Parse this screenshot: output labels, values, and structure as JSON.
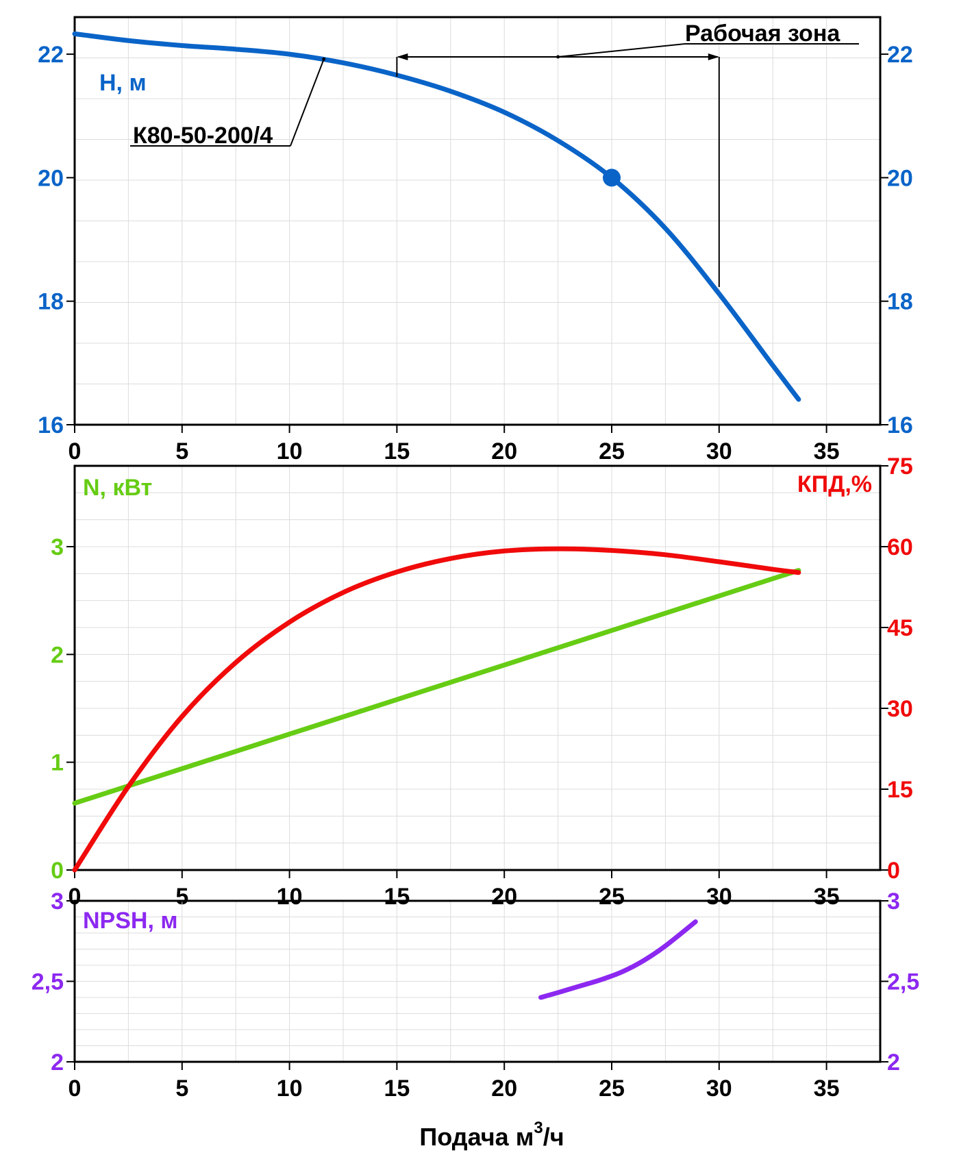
{
  "colors": {
    "head": "#0a64c8",
    "power": "#66cc14",
    "efficiency": "#f00a0a",
    "npsh": "#8c28f0",
    "axis": "#000000",
    "grid": "#dcdcdc"
  },
  "chart_data": [
    {
      "type": "line",
      "xlim": [
        0,
        37.5
      ],
      "x_ticks": [
        "0",
        "5",
        "10",
        "15",
        "20",
        "25",
        "30",
        "35"
      ],
      "ylim": [
        16,
        22.6
      ],
      "y_ticks": [
        "16",
        "18",
        "20",
        "22"
      ],
      "ylabel": "H, м",
      "series": [
        {
          "name": "К80-50-200/4",
          "x": [
            0,
            2.5,
            5,
            7.5,
            10,
            12.5,
            15,
            17.5,
            20,
            22.5,
            25,
            27.5,
            30,
            32.5,
            33.7
          ],
          "y": [
            22.33,
            22.22,
            22.14,
            22.08,
            22.0,
            21.86,
            21.66,
            21.4,
            21.06,
            20.6,
            20.0,
            19.18,
            18.12,
            16.96,
            16.41
          ]
        }
      ],
      "operating_point": {
        "x": 25,
        "y": 20
      },
      "annotations": {
        "curve_label": "К80-50-200/4",
        "work_zone_label": "Рабочая зона",
        "work_zone_range": [
          15,
          30
        ]
      }
    },
    {
      "type": "line",
      "xlim": [
        0,
        37.5
      ],
      "x_ticks": [
        "0",
        "5",
        "10",
        "15",
        "20",
        "25",
        "30",
        "35"
      ],
      "ylim_left": [
        0,
        3.75
      ],
      "y_ticks_left": [
        "0",
        "1",
        "2",
        "3"
      ],
      "ylabel_left": "N, кВт",
      "ylim_right": [
        0,
        75
      ],
      "y_ticks_right": [
        "0",
        "15",
        "30",
        "45",
        "60",
        "75"
      ],
      "ylabel_right": "КПД,%",
      "series": [
        {
          "name": "N, кВт",
          "axis": "left",
          "x": [
            0,
            33.7
          ],
          "y": [
            0.62,
            2.78
          ]
        },
        {
          "name": "КПД,%",
          "axis": "right",
          "x": [
            0,
            2.5,
            5,
            7.5,
            10,
            12.5,
            15,
            17.5,
            20,
            22.5,
            25,
            27.5,
            30,
            32.5,
            33.7
          ],
          "y": [
            0,
            15.5,
            28.5,
            38.5,
            46,
            51.5,
            55.3,
            57.8,
            59.2,
            59.6,
            59.3,
            58.5,
            57.2,
            55.8,
            55.2
          ]
        }
      ]
    },
    {
      "type": "line",
      "xlim": [
        0,
        37.5
      ],
      "x_ticks": [
        "0",
        "5",
        "10",
        "15",
        "20",
        "25",
        "30",
        "35"
      ],
      "ylim": [
        2,
        3
      ],
      "y_ticks": [
        "2",
        "2,5",
        "3"
      ],
      "ylabel": "NPSH, м",
      "xlabel": "Подача м",
      "xlabel_sup": "3",
      "xlabel_suffix": "/ч",
      "series": [
        {
          "name": "NPSH, м",
          "x": [
            21.7,
            22.5,
            23.5,
            24.5,
            25.5,
            26.5,
            27.5,
            28.9
          ],
          "y": [
            2.4,
            2.43,
            2.47,
            2.51,
            2.56,
            2.63,
            2.72,
            2.87
          ]
        }
      ]
    }
  ]
}
